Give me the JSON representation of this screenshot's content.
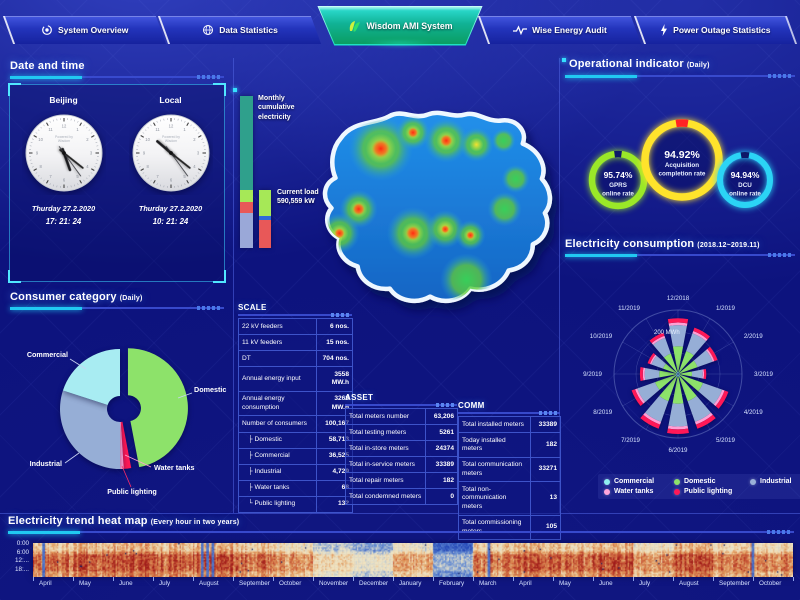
{
  "nav": {
    "tabs": [
      {
        "label": "System Overview",
        "icon": "overview-icon",
        "active": false
      },
      {
        "label": "Data Statistics",
        "icon": "data-statistics-icon",
        "active": false
      },
      {
        "label": "Wisdom AMI System",
        "icon": "wisdom-leaf-icon",
        "active": true
      },
      {
        "label": "Wise Energy Audit",
        "icon": "audit-pulse-icon",
        "active": false
      },
      {
        "label": "Power Outage Statistics",
        "icon": "lightning-icon",
        "active": false
      }
    ]
  },
  "datetime_panel": {
    "title": "Date and time",
    "clocks": [
      {
        "city": "Beijing",
        "brand_lines": [
          "Powered by",
          "Wisdom"
        ],
        "date": "Thurday 27.2.2020",
        "time": "17: 21: 24"
      },
      {
        "city": "Local",
        "brand_lines": [
          "Powered by",
          "Wisdom"
        ],
        "date": "Thurday 27.2.2020",
        "time": "10: 21: 24"
      }
    ]
  },
  "consumer_panel": {
    "title": "Consumer category",
    "subtitle": "(Daily)"
  },
  "center": {
    "bar1_label": "Monthly cumulative electricity",
    "bar2_label": "Current load",
    "bar2_value": "590,559 kW"
  },
  "operational_panel": {
    "title": "Operational indicator",
    "subtitle": "(Daily)",
    "gauges": [
      {
        "value": "95.74%",
        "lines": [
          "GPRS",
          "online rate"
        ],
        "percent": 95.74,
        "color": "#9ae828",
        "gap_color": "#0e1868"
      },
      {
        "value": "94.92%",
        "lines": [
          "Acquisition",
          "completion rate"
        ],
        "percent": 94.92,
        "color": "#ffe32b",
        "gap_color": "#ff2424"
      },
      {
        "value": "94.94%",
        "lines": [
          "DCU",
          "online rate"
        ],
        "percent": 94.94,
        "color": "#2bd4f5",
        "gap_color": "#0e1868"
      }
    ]
  },
  "consumption_panel": {
    "title": "Electricity consumption",
    "subtitle": "(2018.12~2019.11)",
    "radial_label": "200 MWh",
    "legend": [
      {
        "label": "Commercial",
        "color": "#8ff0f0"
      },
      {
        "label": "Domestic",
        "color": "#8de26a"
      },
      {
        "label": "Industrial",
        "color": "#9ab0d8"
      },
      {
        "label": "Water tanks",
        "color": "#ffa6dc"
      },
      {
        "label": "Public lighting",
        "color": "#ff1857"
      }
    ]
  },
  "tables": {
    "scale": {
      "title": "SCALE",
      "rows": [
        [
          "22 kV feeders",
          "6 nos."
        ],
        [
          "11 kV feeders",
          "15 nos."
        ],
        [
          "DT",
          "704 nos."
        ],
        [
          "Annual energy input",
          "3558 MW.h"
        ],
        [
          "Annual energy consumption",
          "3268 MW.h"
        ],
        [
          "Number of consumers",
          "100,167"
        ],
        [
          "├ Domestic",
          "58,713"
        ],
        [
          "├ Commercial",
          "36,525"
        ],
        [
          "├ Industrial",
          "4,729"
        ],
        [
          "├ Water tanks",
          "68"
        ],
        [
          "└ Public lighting",
          "132"
        ]
      ]
    },
    "asset": {
      "title": "ASSET",
      "rows": [
        [
          "Total meters number",
          "63,206"
        ],
        [
          "Total testing meters",
          "5261"
        ],
        [
          "Total in-store meters",
          "24374"
        ],
        [
          "Total in-service meters",
          "33389"
        ],
        [
          "Total repair meters",
          "182"
        ],
        [
          "Total condemned meters",
          "0"
        ]
      ]
    },
    "comm": {
      "title": "COMM",
      "rows": [
        [
          "Total installed meters",
          "33389"
        ],
        [
          "Today installed meters",
          "182"
        ],
        [
          "Total communication meters",
          "33271"
        ],
        [
          "Total non-communication meters",
          "13"
        ],
        [
          "Total commissioning meters",
          "105"
        ]
      ]
    }
  },
  "heatmap_panel": {
    "title": "Electricity trend heat map",
    "subtitle": "(Every hour in two years)",
    "y_labels": [
      "0:00",
      "6:00",
      "12:...",
      "18:..."
    ],
    "months": [
      "April",
      "May",
      "June",
      "July",
      "August",
      "September",
      "October",
      "November",
      "December",
      "January",
      "February",
      "March",
      "April",
      "May",
      "June",
      "July",
      "August",
      "September",
      "October"
    ]
  },
  "chart_data": [
    {
      "id": "consumer_category",
      "type": "pie",
      "donut": true,
      "title": "Consumer category (Daily)",
      "labels": [
        "Domestic",
        "Public lighting",
        "Water tanks",
        "Industrial",
        "Commercial"
      ],
      "values": [
        47,
        2,
        1,
        30,
        20
      ],
      "colors": [
        "#8de26a",
        "#ff1857",
        "#ff9fd4",
        "#96aed6",
        "#a8ecf2"
      ],
      "units": "%",
      "note": "percent shares estimated from arc angles; Domestic slice exploded"
    },
    {
      "id": "operational_gauges",
      "type": "pie",
      "style": "ring-gauge",
      "gauges": [
        {
          "label": "GPRS online rate",
          "value": 95.74
        },
        {
          "label": "Acquisition completion rate",
          "value": 94.92
        },
        {
          "label": "DCU online rate",
          "value": 94.94
        }
      ]
    },
    {
      "id": "electricity_consumption",
      "type": "bar",
      "polar": true,
      "stacked": true,
      "title": "Electricity consumption (2018.12~2019.11)",
      "categories": [
        "12/2018",
        "1/2019",
        "2/2019",
        "3/2019",
        "4/2019",
        "5/2019",
        "6/2019",
        "7/2019",
        "8/2019",
        "9/2019",
        "10/2019",
        "11/2019"
      ],
      "series": [
        {
          "name": "Commercial",
          "color": "#8ff0f0",
          "values": [
            14,
            12,
            10,
            7,
            13,
            15,
            15,
            15,
            12,
            10,
            8,
            11
          ]
        },
        {
          "name": "Domestic",
          "color": "#8de26a",
          "values": [
            130,
            115,
            98,
            66,
            125,
            135,
            140,
            135,
            115,
            88,
            75,
            102
          ]
        },
        {
          "name": "Industrial",
          "color": "#96aed6",
          "values": [
            110,
            98,
            83,
            56,
            106,
            114,
            118,
            114,
            98,
            75,
            64,
            87
          ]
        },
        {
          "name": "Water tanks",
          "color": "#ff9fd4",
          "values": [
            14,
            12,
            10,
            7,
            13,
            15,
            15,
            15,
            12,
            10,
            8,
            11
          ]
        },
        {
          "name": "Public lighting",
          "color": "#ff1857",
          "values": [
            22,
            19,
            17,
            11,
            21,
            23,
            24,
            23,
            19,
            15,
            13,
            17
          ]
        }
      ],
      "r_axis_label": "200 MWh",
      "units": "MWh",
      "note": "monthly values estimated from petal radii"
    },
    {
      "id": "monthly_cumulative_bars",
      "type": "bar",
      "stacked": true,
      "bars": [
        {
          "name": "Monthly cumulative electricity",
          "segments": [
            {
              "color": "#2fa08c",
              "fraction": 0.62
            },
            {
              "color": "#a6e857",
              "fraction": 0.08
            },
            {
              "color": "#e85858",
              "fraction": 0.07
            },
            {
              "color": "#9aa8d8",
              "fraction": 0.23
            }
          ]
        },
        {
          "name": "Current load",
          "value_label": "590,559 kW",
          "segments": [
            {
              "color": "#a6e857",
              "fraction": 0.45
            },
            {
              "color": "#2f6bd8",
              "fraction": 0.06
            },
            {
              "color": "#e85858",
              "fraction": 0.49
            }
          ]
        }
      ],
      "note": "segment fractions estimated from bar colors"
    },
    {
      "id": "electricity_trend_heatmap",
      "type": "heatmap",
      "x_months": [
        "April",
        "May",
        "June",
        "July",
        "August",
        "September",
        "October",
        "November",
        "December",
        "January",
        "February",
        "March",
        "April",
        "May",
        "June",
        "July",
        "August",
        "September",
        "October"
      ],
      "y_hours_range": [
        0,
        24
      ],
      "y_tick_labels": [
        "0:00",
        "6:00",
        "12:...",
        "18:..."
      ],
      "month_warmth": [
        0.7,
        0.74,
        0.78,
        0.72,
        0.78,
        0.7,
        0.62,
        0.45,
        0.36,
        0.58,
        0.18,
        0.68,
        0.74,
        0.7,
        0.76,
        0.62,
        0.74,
        0.68,
        0.66
      ],
      "note": "cell-level values are synthetic texture; warmth per month estimated from colors (1 = hot/red, 0 = cold/blue)"
    }
  ]
}
